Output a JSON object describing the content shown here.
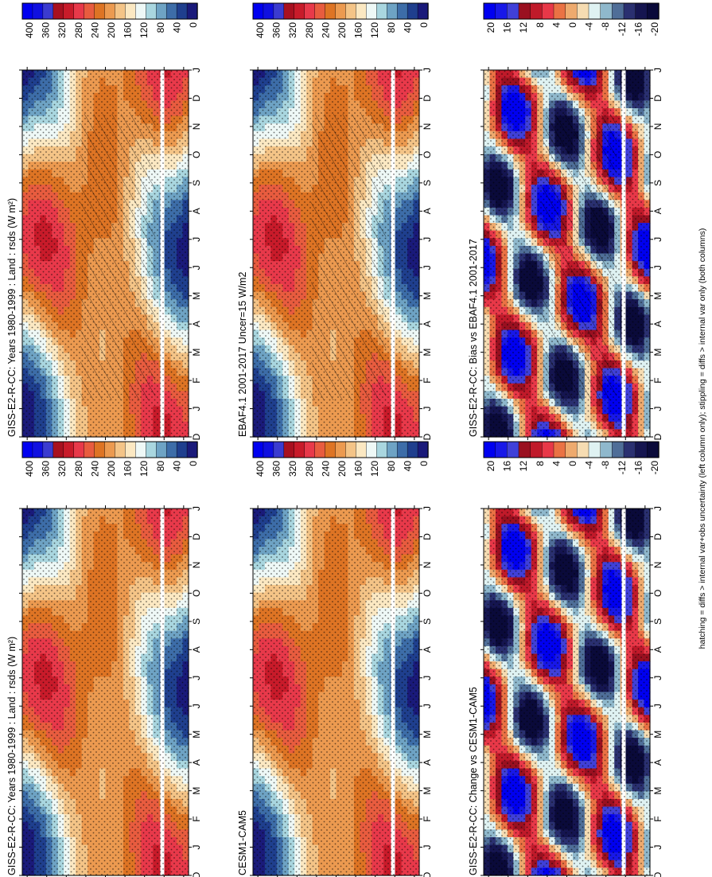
{
  "chart_data": {
    "type": "heatmap",
    "variable": "rsds",
    "units_label": "(W m²)",
    "months": [
      "D",
      "J",
      "F",
      "M",
      "A",
      "M",
      "J",
      "J",
      "A",
      "S",
      "O",
      "N",
      "D",
      "J"
    ],
    "latitude_ticks": [
      "80",
      "60",
      "°N",
      "20",
      "0",
      "20",
      "°S",
      "60",
      "80"
    ],
    "latitude_values": [
      80,
      60,
      40,
      20,
      0,
      -20,
      -40,
      -60,
      -80
    ],
    "footnote": "hatching = diffs > internal var+obs uncertainty (left column only); stippling = diffs > internal var only (both columns)",
    "panels": [
      {
        "id": "model-left",
        "title": "GISS-E2-R-CC: Years 1980-1999 : Land : rsds (W m²)",
        "kind": "absolute",
        "hatched": true,
        "colorbar_ticks": [
          "400",
          "360",
          "320",
          "280",
          "240",
          "200",
          "160",
          "120",
          "80",
          "40",
          "0"
        ],
        "colorbar_range": [
          0,
          420
        ]
      },
      {
        "id": "obs",
        "title": "EBAF4.1 2001-2017 Uncer=15 W/m2",
        "kind": "absolute",
        "hatched": true,
        "colorbar_ticks": [
          "400",
          "360",
          "320",
          "280",
          "240",
          "200",
          "160",
          "120",
          "80",
          "40",
          "0"
        ],
        "colorbar_range": [
          0,
          420
        ]
      },
      {
        "id": "bias",
        "title": "GISS-E2-R-CC: Bias vs EBAF4.1 2001-2017",
        "kind": "difference",
        "hatched": true,
        "colorbar_ticks": [
          "20",
          "16",
          "12",
          "8",
          "4",
          "0",
          "-4",
          "-8",
          "-12",
          "-16",
          "-20"
        ],
        "colorbar_range": [
          -22,
          22
        ]
      },
      {
        "id": "model-right",
        "title": "GISS-E2-R-CC: Years 1980-1999 : Land : rsds (W m²)",
        "kind": "absolute",
        "hatched": false,
        "colorbar_ticks": [
          "400",
          "360",
          "320",
          "280",
          "240",
          "200",
          "160",
          "120",
          "80",
          "40",
          "0"
        ],
        "colorbar_range": [
          0,
          420
        ]
      },
      {
        "id": "cesm",
        "title": "CESM1-CAM5",
        "kind": "absolute",
        "hatched": false,
        "colorbar_ticks": [
          "400",
          "360",
          "320",
          "280",
          "240",
          "200",
          "160",
          "120",
          "80",
          "40",
          "0"
        ],
        "colorbar_range": [
          0,
          420
        ]
      },
      {
        "id": "change",
        "title": "GISS-E2-R-CC: Change vs CESM1-CAM5",
        "kind": "difference",
        "hatched": false,
        "colorbar_ticks": [
          "20",
          "16",
          "12",
          "8",
          "4",
          "0",
          "-4",
          "-8",
          "-12",
          "-16",
          "-20"
        ],
        "colorbar_range": [
          -22,
          22
        ]
      }
    ]
  },
  "colors": {
    "palette_absolute": [
      "#1a1a7a",
      "#1f3f8e",
      "#3d6da8",
      "#6ea3c4",
      "#a9d6df",
      "#eef8f6",
      "#fbe8c2",
      "#f4c487",
      "#ec9a50",
      "#de7424",
      "#e85c3f",
      "#e8394a",
      "#c81b2a",
      "#a8101f",
      "#3b3bd0",
      "#1010e0",
      "#0000f0"
    ],
    "palette_difference": [
      "#0a0a3a",
      "#151550",
      "#2a3070",
      "#4f6e98",
      "#8fb8cc",
      "#dff2f2",
      "#f6dcb2",
      "#eeaa6e",
      "#ea7244",
      "#e83848",
      "#c01a2a",
      "#9a1020",
      "#4040d8",
      "#1818e8",
      "#0000f0"
    ],
    "hatch": "#000000",
    "stipple": "#000000",
    "white_band": "#ffffff"
  }
}
